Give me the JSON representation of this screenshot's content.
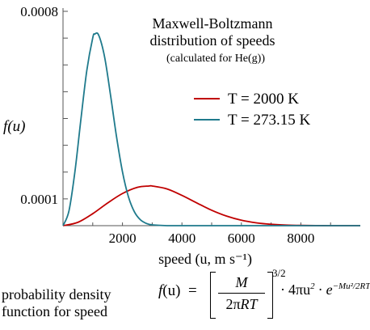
{
  "chart_data": {
    "type": "line",
    "title": "Maxwell-Boltzmann",
    "subtitle": "distribution of speeds",
    "note": "(calculated for He(g))",
    "xlabel": "speed (u, m s⁻¹)",
    "ylabel": "f(u)",
    "xlim": [
      0,
      10000
    ],
    "ylim": [
      0,
      0.0008
    ],
    "x_ticks": [
      2000,
      4000,
      6000,
      8000
    ],
    "x_tick_labels": [
      "2000",
      "4000",
      "6000",
      "8000"
    ],
    "y_tick_labels": [
      "0.0001",
      "0.0008"
    ],
    "y_tick_label_values": [
      0.0001,
      0.0008
    ],
    "legend_position": "right",
    "series": [
      {
        "name": "T = 2000 K",
        "color": "#c00000",
        "x": [
          0,
          500,
          1000,
          1500,
          2000,
          2500,
          2887,
          3000,
          3500,
          4000,
          4500,
          5000,
          5500,
          6000,
          6500,
          7000,
          7500,
          8000,
          8500,
          9000,
          9500,
          10000
        ],
        "y": [
          0,
          1.24e-05,
          4.47e-05,
          8.46e-05,
          0.00012,
          0.000143,
          0.000148,
          0.000148,
          0.000137,
          0.000113,
          8.48e-05,
          5.76e-05,
          3.58e-05,
          2.03e-05,
          1.06e-05,
          5.1e-06,
          2.2e-06,
          9e-07,
          3e-07,
          1e-07,
          4e-08,
          1e-08
        ]
      },
      {
        "name": "T = 273.15 K",
        "color": "#1f7a8c",
        "x": [
          0,
          200,
          400,
          600,
          800,
          1000,
          1067,
          1200,
          1400,
          1600,
          1800,
          2000,
          2200,
          2400,
          2600,
          2800,
          3000,
          3500,
          4000,
          10000
        ],
        "y": [
          0,
          5.5e-05,
          0.000201,
          0.000395,
          0.000579,
          0.000701,
          0.000715,
          0.000711,
          0.000629,
          0.000486,
          0.000332,
          0.000201,
          0.000108,
          5.19e-05,
          2.22e-05,
          8.5e-06,
          2.9e-06,
          1e-07,
          0.0,
          0
        ]
      }
    ]
  },
  "formula": {
    "caption_line1": "probability density",
    "caption_line2": "function for speed",
    "lhs_f": "f",
    "lhs_paren": "(u)",
    "equals": "=",
    "numerator": "M",
    "den_coef": "2π",
    "den_vars": "RT",
    "power": "3/2",
    "term": "4πu",
    "term_exp": "2",
    "dot": "·",
    "exp_base": "e",
    "exponent": "−Mu²/2RT"
  }
}
